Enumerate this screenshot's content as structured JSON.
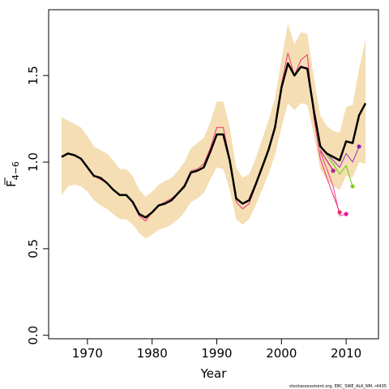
{
  "chart_data": {
    "type": "line",
    "xlabel": "Year",
    "ylabel_main": "F",
    "ylabel_sub": "4−6",
    "xlim": [
      1964,
      2015
    ],
    "ylim": [
      -0.02,
      1.88
    ],
    "x_ticks": [
      1970,
      1980,
      1990,
      2000,
      2010
    ],
    "x_tick_labels": [
      "1970",
      "1980",
      "1990",
      "2000",
      "2010"
    ],
    "y_ticks": [
      0.0,
      0.5,
      1.0,
      1.5
    ],
    "y_tick_labels": [
      "0.0",
      "0.5",
      "1.0",
      "1.5"
    ],
    "band": {
      "x": [
        1966,
        1967,
        1968,
        1969,
        1970,
        1971,
        1972,
        1973,
        1974,
        1975,
        1976,
        1977,
        1978,
        1979,
        1980,
        1981,
        1982,
        1983,
        1984,
        1985,
        1986,
        1987,
        1988,
        1989,
        1990,
        1991,
        1992,
        1993,
        1994,
        1995,
        1996,
        1997,
        1998,
        1999,
        2000,
        2001,
        2002,
        2003,
        2004,
        2005,
        2006,
        2007,
        2008,
        2009,
        2010,
        2011,
        2012,
        2013
      ],
      "upper": [
        1.26,
        1.24,
        1.22,
        1.2,
        1.15,
        1.09,
        1.07,
        1.05,
        1.01,
        0.96,
        0.96,
        0.92,
        0.84,
        0.8,
        0.83,
        0.87,
        0.89,
        0.91,
        0.95,
        1.0,
        1.08,
        1.11,
        1.14,
        1.23,
        1.35,
        1.35,
        1.2,
        0.97,
        0.91,
        0.93,
        1.02,
        1.13,
        1.24,
        1.37,
        1.59,
        1.8,
        1.68,
        1.75,
        1.74,
        1.49,
        1.27,
        1.21,
        1.18,
        1.17,
        1.32,
        1.33,
        1.54,
        1.71
      ],
      "lower": [
        0.81,
        0.86,
        0.87,
        0.86,
        0.83,
        0.78,
        0.75,
        0.73,
        0.7,
        0.67,
        0.67,
        0.64,
        0.59,
        0.56,
        0.58,
        0.61,
        0.62,
        0.64,
        0.67,
        0.71,
        0.77,
        0.79,
        0.82,
        0.9,
        0.97,
        0.96,
        0.84,
        0.67,
        0.64,
        0.67,
        0.75,
        0.84,
        0.93,
        1.04,
        1.2,
        1.34,
        1.3,
        1.34,
        1.33,
        1.16,
        0.96,
        0.9,
        0.86,
        0.84,
        0.92,
        0.91,
        1.0,
        0.99
      ]
    },
    "series": [
      {
        "color": "#000000",
        "width": 2.5,
        "x": [
          1966,
          1967,
          1968,
          1969,
          1970,
          1971,
          1972,
          1973,
          1974,
          1975,
          1976,
          1977,
          1978,
          1979,
          1980,
          1981,
          1982,
          1983,
          1984,
          1985,
          1986,
          1987,
          1988,
          1989,
          1990,
          1991,
          1992,
          1993,
          1994,
          1995,
          1996,
          1997,
          1998,
          1999,
          2000,
          2001,
          2002,
          2003,
          2004,
          2005,
          2006,
          2007,
          2008,
          2009,
          2010,
          2011,
          2012,
          2013
        ],
        "y": [
          1.03,
          1.05,
          1.04,
          1.02,
          0.97,
          0.92,
          0.91,
          0.88,
          0.84,
          0.81,
          0.81,
          0.77,
          0.7,
          0.68,
          0.71,
          0.75,
          0.76,
          0.78,
          0.82,
          0.86,
          0.94,
          0.95,
          0.97,
          1.06,
          1.16,
          1.16,
          1.01,
          0.79,
          0.76,
          0.78,
          0.87,
          0.97,
          1.07,
          1.2,
          1.43,
          1.57,
          1.5,
          1.55,
          1.54,
          1.3,
          1.09,
          1.05,
          1.03,
          1.01,
          1.12,
          1.11,
          1.27,
          1.34
        ]
      },
      {
        "color": "#e8336f",
        "width": 1,
        "x": [
          1966,
          1967,
          1968,
          1969,
          1970,
          1971,
          1972,
          1973,
          1974,
          1975,
          1976,
          1977,
          1978,
          1979,
          1980,
          1981,
          1982,
          1983,
          1984,
          1985,
          1986,
          1987,
          1988,
          1989,
          1990,
          1991,
          1992,
          1993,
          1994,
          1995,
          1996,
          1997,
          1998,
          1999,
          2000,
          2001,
          2002,
          2003,
          2004,
          2005,
          2006,
          2007,
          2008,
          2009
        ],
        "y": [
          1.03,
          1.05,
          1.04,
          1.02,
          0.97,
          0.92,
          0.9,
          0.88,
          0.84,
          0.81,
          0.81,
          0.77,
          0.69,
          0.66,
          0.71,
          0.75,
          0.77,
          0.79,
          0.82,
          0.87,
          0.95,
          0.96,
          0.99,
          1.08,
          1.2,
          1.2,
          1.02,
          0.77,
          0.73,
          0.76,
          0.86,
          0.97,
          1.08,
          1.21,
          1.45,
          1.63,
          1.5,
          1.59,
          1.62,
          1.26,
          1.02,
          0.91,
          0.81,
          0.71
        ],
        "end": {
          "x": 2009,
          "y": 0.71,
          "color": "#e8336f"
        }
      },
      {
        "color": "#ff3399",
        "width": 1,
        "x": [
          2006,
          2007,
          2008,
          2009,
          2010
        ],
        "y": [
          1.06,
          0.96,
          0.86,
          0.69,
          0.7
        ],
        "end": {
          "x": 2010,
          "y": 0.7,
          "color": "#ee1199"
        }
      },
      {
        "color": "#c4007a",
        "width": 1,
        "x": [
          2006,
          2007,
          2008
        ],
        "y": [
          1.07,
          1.01,
          0.95
        ],
        "end": {
          "x": 2008,
          "y": 0.95,
          "color": "#bb2299"
        }
      },
      {
        "color": "#66cc00",
        "width": 1,
        "x": [
          2006,
          2007,
          2008,
          2009,
          2010,
          2011
        ],
        "y": [
          1.09,
          1.04,
          0.99,
          0.93,
          0.98,
          0.86
        ],
        "end": {
          "x": 2011,
          "y": 0.86,
          "color": "#88cc22"
        }
      },
      {
        "color": "#9933cc",
        "width": 1,
        "x": [
          2006,
          2007,
          2008,
          2009,
          2010,
          2011,
          2012
        ],
        "y": [
          1.1,
          1.05,
          1.01,
          0.97,
          1.05,
          1.0,
          1.09
        ],
        "end": {
          "x": 2012,
          "y": 1.09,
          "color": "#8822bb"
        }
      }
    ],
    "band_color": "#f5deb3",
    "footnote": "stockassessment.org, EBC_SWE_ALK_NM, r4435"
  }
}
